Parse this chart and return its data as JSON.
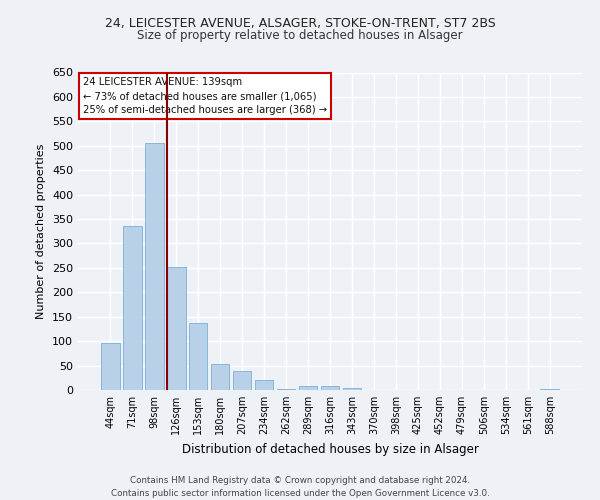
{
  "title_line1": "24, LEICESTER AVENUE, ALSAGER, STOKE-ON-TRENT, ST7 2BS",
  "title_line2": "Size of property relative to detached houses in Alsager",
  "xlabel": "Distribution of detached houses by size in Alsager",
  "ylabel": "Number of detached properties",
  "bar_color": "#b8d0e8",
  "bar_edge_color": "#7aafd4",
  "categories": [
    "44sqm",
    "71sqm",
    "98sqm",
    "126sqm",
    "153sqm",
    "180sqm",
    "207sqm",
    "234sqm",
    "262sqm",
    "289sqm",
    "316sqm",
    "343sqm",
    "370sqm",
    "398sqm",
    "425sqm",
    "452sqm",
    "479sqm",
    "506sqm",
    "534sqm",
    "561sqm",
    "588sqm"
  ],
  "values": [
    97,
    335,
    505,
    252,
    138,
    53,
    38,
    21,
    3,
    9,
    9,
    5,
    0,
    0,
    0,
    0,
    0,
    0,
    0,
    0,
    2
  ],
  "ylim": [
    0,
    650
  ],
  "yticks": [
    0,
    50,
    100,
    150,
    200,
    250,
    300,
    350,
    400,
    450,
    500,
    550,
    600,
    650
  ],
  "vline_index": 3,
  "annotation_text_line1": "24 LEICESTER AVENUE: 139sqm",
  "annotation_text_line2": "← 73% of detached houses are smaller (1,065)",
  "annotation_text_line3": "25% of semi-detached houses are larger (368) →",
  "footer_line1": "Contains HM Land Registry data © Crown copyright and database right 2024.",
  "footer_line2": "Contains public sector information licensed under the Open Government Licence v3.0.",
  "bg_color": "#eef2f7",
  "grid_color": "#ffffff",
  "annotation_box_color": "#ffffff",
  "annotation_border_color": "#cc0000",
  "vline_color": "#880000"
}
